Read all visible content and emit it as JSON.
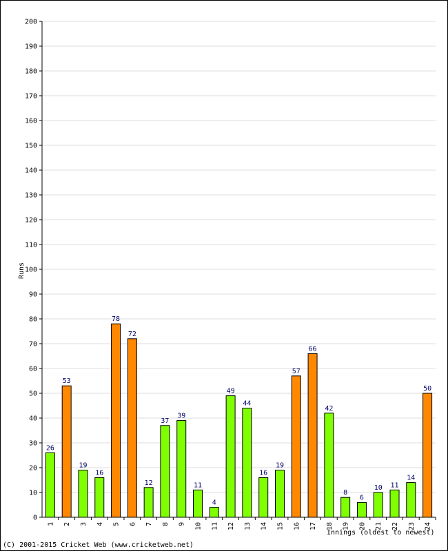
{
  "chart_data": {
    "type": "bar",
    "xlabel": "Innings (oldest to newest)",
    "ylabel": "Runs",
    "ylim": [
      0,
      200
    ],
    "ytick_step": 10,
    "grid": true,
    "categories": [
      "1",
      "2",
      "3",
      "4",
      "5",
      "6",
      "7",
      "8",
      "9",
      "10",
      "11",
      "12",
      "13",
      "14",
      "15",
      "16",
      "17",
      "18",
      "19",
      "20",
      "21",
      "22",
      "23",
      "24"
    ],
    "values": [
      26,
      53,
      19,
      16,
      78,
      72,
      12,
      37,
      39,
      11,
      4,
      49,
      44,
      16,
      19,
      57,
      66,
      42,
      8,
      6,
      10,
      11,
      14,
      50
    ],
    "bar_colors_by_innings": [
      "green",
      "orange",
      "green",
      "green",
      "orange",
      "orange",
      "green",
      "green",
      "green",
      "green",
      "green",
      "green",
      "green",
      "green",
      "green",
      "orange",
      "orange",
      "green",
      "green",
      "green",
      "green",
      "green",
      "green",
      "orange"
    ],
    "colors": {
      "green": "#80ff00",
      "orange": "#ff8800",
      "grid": "#dddddd",
      "value_label": "#000066"
    }
  },
  "footer": {
    "copyright": "(C) 2001-2015 Cricket Web (www.cricketweb.net)"
  }
}
